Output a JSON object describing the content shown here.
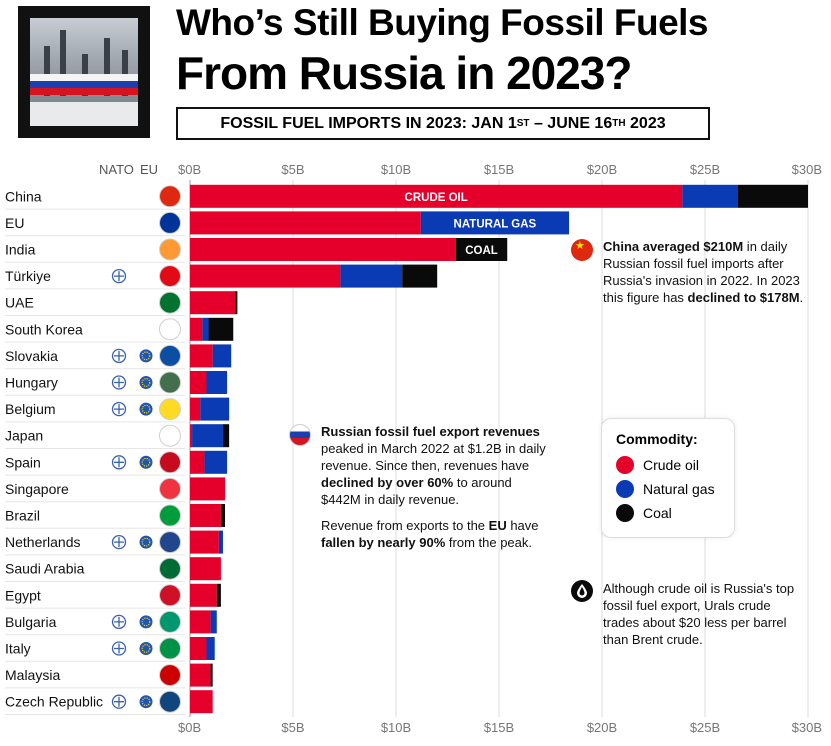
{
  "header": {
    "title_line1": "Who’s Still Buying Fossil Fuels",
    "title_line2": "From Russia in 2023?",
    "subtitle_pre": "FOSSIL FUEL IMPORTS IN 2023: JAN 1",
    "subtitle_sup1": "ST",
    "subtitle_mid": " – JUNE 16",
    "subtitle_sup2": "TH",
    "subtitle_post": " 2023"
  },
  "columns": {
    "nato": "NATO",
    "eu": "EU"
  },
  "colors": {
    "crude": "#e4002b",
    "gas": "#0a3bb5",
    "coal": "#0a0a0a",
    "gridline": "#dcdcdc"
  },
  "chart_data": {
    "type": "bar",
    "orientation": "horizontal",
    "stacked": true,
    "xlim": [
      0,
      30
    ],
    "x_ticks": [
      "$0B",
      "$5B",
      "$10B",
      "$15B",
      "$20B",
      "$25B",
      "$30B"
    ],
    "categories": [
      "China",
      "EU",
      "India",
      "Türkiye",
      "UAE",
      "South Korea",
      "Slovakia",
      "Hungary",
      "Belgium",
      "Japan",
      "Spain",
      "Singapore",
      "Brazil",
      "Netherlands",
      "Saudi Arabia",
      "Egypt",
      "Bulgaria",
      "Italy",
      "Malaysia",
      "Czech Republic"
    ],
    "nato": [
      false,
      false,
      false,
      true,
      false,
      false,
      true,
      true,
      true,
      false,
      true,
      false,
      false,
      true,
      false,
      false,
      true,
      true,
      false,
      true
    ],
    "eu": [
      false,
      false,
      false,
      false,
      false,
      false,
      true,
      true,
      true,
      false,
      true,
      false,
      false,
      true,
      false,
      false,
      true,
      true,
      false,
      true
    ],
    "series": [
      {
        "name": "Crude oil",
        "values": [
          23.9,
          11.2,
          12.9,
          7.3,
          2.2,
          0.6,
          1.1,
          0.8,
          0.5,
          0.1,
          0.7,
          1.7,
          1.5,
          1.4,
          1.5,
          1.3,
          1.0,
          0.8,
          1.0,
          1.1
        ]
      },
      {
        "name": "Natural gas",
        "values": [
          2.7,
          7.2,
          0.0,
          3.0,
          0.0,
          0.3,
          0.9,
          1.0,
          1.4,
          1.5,
          1.1,
          0.0,
          0.0,
          0.2,
          0.0,
          0.0,
          0.3,
          0.4,
          0.0,
          0.0
        ]
      },
      {
        "name": "Coal",
        "values": [
          3.4,
          0.0,
          2.5,
          1.7,
          0.1,
          1.2,
          0.0,
          0.0,
          0.0,
          0.3,
          0.0,
          0.0,
          0.2,
          0.0,
          0.0,
          0.2,
          0.0,
          0.0,
          0.1,
          0.0
        ]
      }
    ],
    "bar_labels": [
      {
        "category": "China",
        "series": "Crude oil",
        "text": "CRUDE OIL"
      },
      {
        "category": "EU",
        "series": "Natural gas",
        "text": "NATURAL GAS"
      },
      {
        "category": "India",
        "series": "Coal",
        "text": "COAL"
      }
    ],
    "grid": true,
    "legend_position": "right"
  },
  "legend": {
    "title": "Commodity:",
    "items": [
      {
        "label": "Crude oil",
        "color": "#e4002b"
      },
      {
        "label": "Natural gas",
        "color": "#0a3bb5"
      },
      {
        "label": "Coal",
        "color": "#0a0a0a"
      }
    ]
  },
  "annotations": {
    "china": {
      "p1_b1": "China averaged $210M",
      "p1_t1": " in daily Russian fossil fuel imports after Russia's invasion in 2022. In 2023 this figure has ",
      "p1_b2": "declined to $178M",
      "p1_t2": "."
    },
    "revenue": {
      "p1_b1": "Russian fossil fuel export revenues",
      "p1_t1": " peaked in March 2022 at $1.2B in daily revenue. Since then, revenues have ",
      "p1_b2": "declined by over 60%",
      "p1_t2": " to around $442M in daily revenue.",
      "p2_t1": "Revenue from exports to the ",
      "p2_b1": "EU",
      "p2_t2": " have ",
      "p2_b2": "fallen by nearly 90%",
      "p2_t3": " from the peak."
    },
    "crude": {
      "p1_t1": "Although crude oil is Russia's top fossil fuel export, Urals crude trades about $20 less per barrel than Brent crude."
    }
  }
}
